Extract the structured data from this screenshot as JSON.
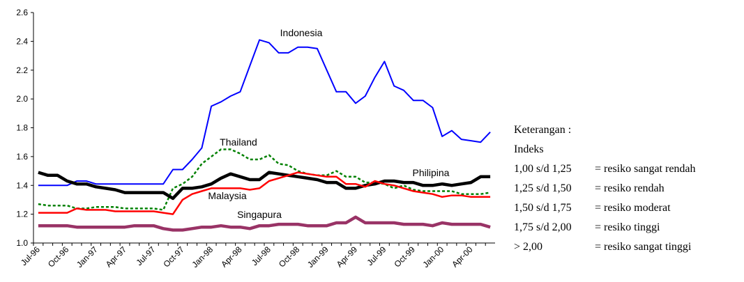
{
  "chart_data": {
    "type": "line",
    "categories": [
      "Jul-96",
      null,
      null,
      "Oct-96",
      null,
      null,
      "Jan-97",
      null,
      null,
      "Apr-97",
      null,
      null,
      "Jul-97",
      null,
      null,
      "Oct-97",
      null,
      null,
      "Jan-98",
      null,
      null,
      "Apr-98",
      null,
      null,
      "Jul-98",
      null,
      null,
      "Oct-98",
      null,
      null,
      "Jan-99",
      null,
      null,
      "Apr-99",
      null,
      null,
      "Jul-99",
      null,
      null,
      "Oct-99",
      null,
      null,
      "Jan-00",
      null,
      null,
      "Apr-00",
      null,
      null
    ],
    "ylim": [
      1.0,
      2.6
    ],
    "yticks": [
      {
        "value": 1,
        "label": "1.0"
      },
      1.2,
      1.4,
      1.6,
      1.8,
      {
        "value": 2,
        "label": "2.0"
      },
      2.2,
      2.4,
      2.6
    ],
    "series": [
      {
        "name": "Indonesia",
        "color": "#0000ff",
        "values": [
          1.4,
          1.4,
          1.4,
          1.4,
          1.43,
          1.43,
          1.41,
          1.41,
          1.41,
          1.41,
          1.41,
          1.41,
          1.41,
          1.41,
          1.51,
          1.51,
          1.58,
          1.66,
          1.95,
          1.98,
          2.02,
          2.05,
          2.23,
          2.41,
          2.39,
          2.32,
          2.32,
          2.36,
          2.36,
          2.35,
          2.2,
          2.05,
          2.05,
          1.97,
          2.02,
          2.15,
          2.26,
          2.09,
          2.06,
          1.99,
          1.99,
          1.94,
          1.74,
          1.78,
          1.72,
          1.71,
          1.7,
          1.77
        ]
      },
      {
        "name": "Thailand",
        "color": "#008000",
        "values": [
          1.27,
          1.26,
          1.26,
          1.26,
          1.24,
          1.24,
          1.25,
          1.25,
          1.25,
          1.24,
          1.24,
          1.24,
          1.24,
          1.23,
          1.38,
          1.41,
          1.46,
          1.55,
          1.6,
          1.65,
          1.65,
          1.62,
          1.58,
          1.58,
          1.61,
          1.55,
          1.54,
          1.5,
          1.48,
          1.47,
          1.47,
          1.5,
          1.46,
          1.46,
          1.42,
          1.42,
          1.41,
          1.38,
          1.4,
          1.37,
          1.36,
          1.36,
          1.36,
          1.36,
          1.34,
          1.34,
          1.34,
          1.35
        ]
      },
      {
        "name": "Philipina",
        "color": "#000000",
        "values": [
          1.49,
          1.47,
          1.47,
          1.43,
          1.41,
          1.41,
          1.39,
          1.38,
          1.37,
          1.35,
          1.35,
          1.35,
          1.35,
          1.35,
          1.31,
          1.38,
          1.38,
          1.39,
          1.41,
          1.45,
          1.48,
          1.46,
          1.44,
          1.44,
          1.49,
          1.48,
          1.47,
          1.46,
          1.45,
          1.44,
          1.42,
          1.42,
          1.38,
          1.38,
          1.4,
          1.41,
          1.43,
          1.43,
          1.42,
          1.42,
          1.4,
          1.4,
          1.41,
          1.4,
          1.41,
          1.42,
          1.46,
          1.46
        ]
      },
      {
        "name": "Malaysia",
        "color": "#ff0000",
        "values": [
          1.21,
          1.21,
          1.21,
          1.21,
          1.24,
          1.23,
          1.23,
          1.23,
          1.22,
          1.22,
          1.22,
          1.22,
          1.22,
          1.21,
          1.2,
          1.3,
          1.34,
          1.36,
          1.38,
          1.38,
          1.38,
          1.38,
          1.37,
          1.38,
          1.43,
          1.45,
          1.47,
          1.49,
          1.48,
          1.47,
          1.46,
          1.46,
          1.41,
          1.41,
          1.39,
          1.43,
          1.41,
          1.4,
          1.38,
          1.36,
          1.35,
          1.34,
          1.32,
          1.33,
          1.33,
          1.32,
          1.32,
          1.32
        ]
      },
      {
        "name": "Singapura",
        "color": "#993366",
        "values": [
          1.12,
          1.12,
          1.12,
          1.12,
          1.11,
          1.11,
          1.11,
          1.11,
          1.11,
          1.11,
          1.12,
          1.12,
          1.12,
          1.1,
          1.09,
          1.09,
          1.1,
          1.11,
          1.11,
          1.12,
          1.11,
          1.11,
          1.1,
          1.12,
          1.12,
          1.13,
          1.13,
          1.13,
          1.12,
          1.12,
          1.12,
          1.14,
          1.14,
          1.18,
          1.14,
          1.14,
          1.14,
          1.14,
          1.13,
          1.13,
          1.13,
          1.12,
          1.14,
          1.13,
          1.13,
          1.13,
          1.13,
          1.11
        ]
      }
    ],
    "notes": {
      "title": "Keterangan :",
      "subtitle": "Indeks",
      "rows": [
        {
          "range": "1,00 s/d 1,25",
          "desc": "= resiko sangat rendah"
        },
        {
          "range": "1,25 s/d 1,50",
          "desc": "= resiko rendah"
        },
        {
          "range": "1,50 s/d 1,75",
          "desc": "= resiko moderat"
        },
        {
          "range": "1,75 s/d 2,00",
          "desc": "= resiko tinggi"
        },
        {
          "range": "> 2,00",
          "desc": "= resiko sangat tinggi"
        }
      ]
    }
  }
}
